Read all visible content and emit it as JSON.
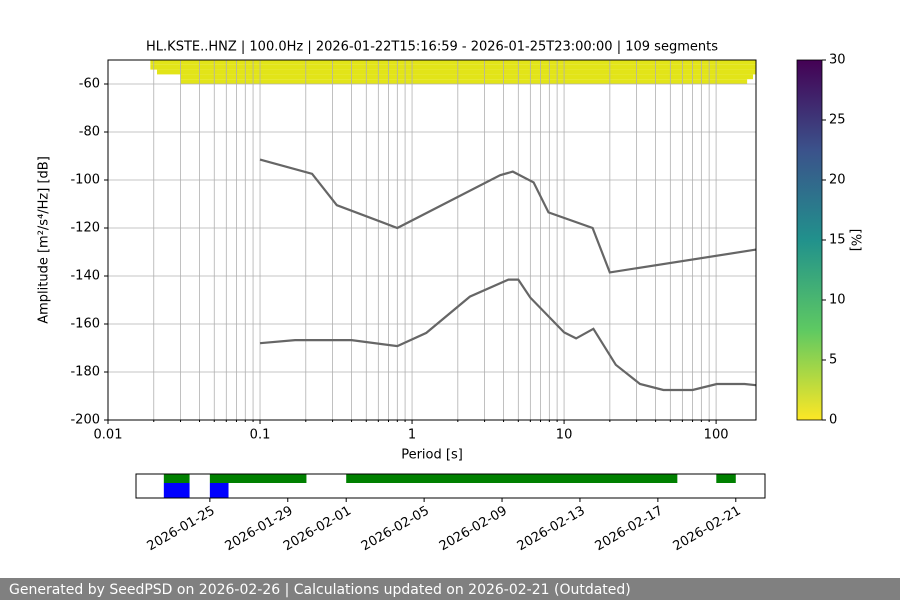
{
  "chart_data": [
    {
      "type": "line",
      "title": "HL.KSTE..HNZ | 100.0Hz | 2026-01-22T15:16:59 - 2026-01-25T23:00:00 | 109 segments",
      "xlabel": "Period [s]",
      "ylabel": "Amplitude [m²/s⁴/Hz] [dB]",
      "xscale": "log",
      "xlim": [
        0.01,
        183
      ],
      "ylim": [
        -200,
        -50
      ],
      "xticks": [
        0.01,
        0.1,
        1,
        10,
        100
      ],
      "xminorticks": [
        0.02,
        0.03,
        0.04,
        0.05,
        0.06,
        0.07,
        0.08,
        0.09,
        0.2,
        0.3,
        0.4,
        0.5,
        0.6,
        0.7,
        0.8,
        0.9,
        2,
        3,
        4,
        5,
        6,
        7,
        8,
        9,
        20,
        30,
        40,
        50,
        60,
        70,
        80,
        90
      ],
      "yticks": [
        -200,
        -180,
        -160,
        -140,
        -120,
        -100,
        -80,
        -60
      ],
      "grid": true,
      "series": [
        {
          "color": "#666666",
          "x": [
            0.1,
            0.22,
            0.32,
            0.8,
            3.8,
            4.6,
            6.3,
            7.9,
            15.4,
            20,
            183
          ],
          "values": [
            -91.5,
            -97.4,
            -110.5,
            -120,
            -98,
            -96.5,
            -101,
            -113.5,
            -120,
            -138.5,
            -129
          ]
        },
        {
          "color": "#666666",
          "x": [
            0.1,
            0.17,
            0.4,
            0.8,
            1.24,
            2.4,
            4.3,
            5.0,
            6.0,
            10,
            12,
            15.6,
            21.9,
            31.6,
            45,
            70,
            101,
            154,
            183
          ],
          "values": [
            -168,
            -166.7,
            -166.7,
            -169.2,
            -163.7,
            -148.6,
            -141.5,
            -141.5,
            -149,
            -163.5,
            -166,
            -162,
            -177,
            -185,
            -187.5,
            -187.5,
            -185,
            -185,
            -185.5
          ]
        }
      ],
      "psd_color": "#e2e418",
      "psd_rows": [
        {
          "period": [
            0.019,
            183
          ],
          "db": [
            -52,
            -50
          ]
        },
        {
          "period": [
            0.019,
            183
          ],
          "db": [
            -54,
            -52
          ]
        },
        {
          "period": [
            0.021,
            183
          ],
          "db": [
            -56,
            -54
          ]
        },
        {
          "period": [
            0.03,
            175
          ],
          "db": [
            -58,
            -56
          ]
        },
        {
          "period": [
            0.03,
            160
          ],
          "db": [
            -60,
            -58
          ]
        }
      ],
      "colorbar": {
        "label": "[%]",
        "lim": [
          0,
          30
        ],
        "ticks": [
          0,
          5,
          10,
          15,
          20,
          25,
          30
        ]
      }
    },
    {
      "type": "timeline",
      "xlim": [
        "2026-01-21T05:00",
        "2026-02-22T12:00"
      ],
      "xticks": [
        "2026-01-25",
        "2026-01-29",
        "2026-02-01",
        "2026-02-05",
        "2026-02-09",
        "2026-02-13",
        "2026-02-17",
        "2026-02-21"
      ],
      "availability_color": "#008000",
      "availability": [
        {
          "start": "2026-01-22T15:17",
          "end": "2026-01-23T23:00"
        },
        {
          "start": "2026-01-25T00:00",
          "end": "2026-01-29T23:00"
        },
        {
          "start": "2026-02-01T00:00",
          "end": "2026-02-18T00:00"
        },
        {
          "start": "2026-02-20T00:00",
          "end": "2026-02-21T00:00"
        }
      ],
      "used_color": "#0000ff",
      "used": [
        {
          "start": "2026-01-22T15:17",
          "end": "2026-01-23T23:00"
        },
        {
          "start": "2026-01-25T00:00",
          "end": "2026-01-25T23:00"
        }
      ]
    }
  ],
  "footer": "Generated by SeedPSD on 2026-02-26 | Calculations updated on 2026-02-21 (Outdated)"
}
